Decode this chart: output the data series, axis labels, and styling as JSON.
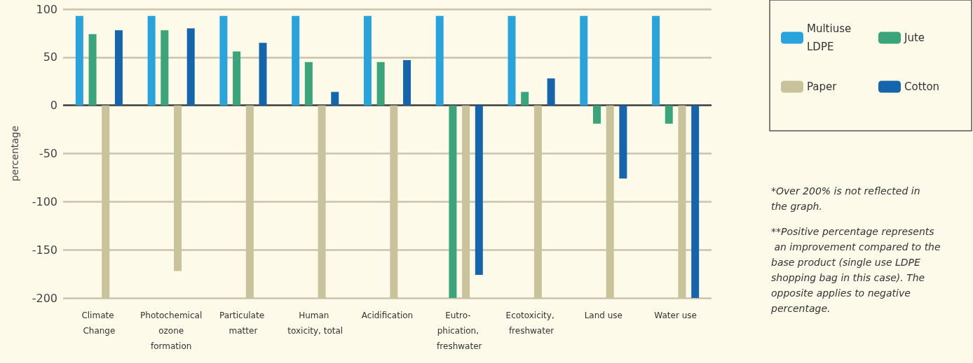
{
  "chart_data": {
    "type": "bar",
    "ylabel": "percentage",
    "categories": [
      "Climate Change",
      "Photochemical ozone formation",
      "Particulate matter",
      "Human toxicity, total",
      "Acidification",
      "Eutro- phication, freshwater",
      "Ecotoxicity, freshwater",
      "Land use",
      "Water use"
    ],
    "series": [
      {
        "name": "Multiuse LDPE",
        "color": "#29a3dc",
        "values": [
          93,
          93,
          93,
          93,
          93,
          93,
          93,
          93,
          93
        ]
      },
      {
        "name": "Jute",
        "color": "#3aa57a",
        "values": [
          74,
          78,
          56,
          45,
          45,
          -200,
          14,
          -19,
          -19
        ]
      },
      {
        "name": "Paper",
        "color": "#c8c39a",
        "values": [
          -200,
          -172,
          -200,
          -200,
          -200,
          -200,
          -200,
          -200,
          -200
        ]
      },
      {
        "name": "Cotton",
        "color": "#1565ad",
        "values": [
          78,
          80,
          65,
          14,
          47,
          -176,
          28,
          -76,
          -200
        ]
      }
    ],
    "ylim": [
      -200,
      100
    ],
    "yticks": [
      -200,
      -150,
      -100,
      -50,
      0,
      50,
      100
    ],
    "grid": "y",
    "legend": "right",
    "annotations": [
      "*Over 200% is not reflected in the graph.",
      "**Positive percentage represents an improvement compared to the base product (single use LDPE shopping bag in this case). The opposite applies to negative percentage."
    ]
  }
}
